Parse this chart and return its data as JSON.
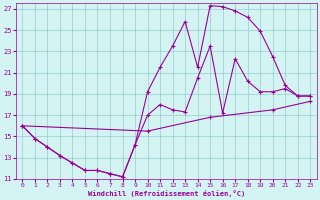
{
  "xlabel": "Windchill (Refroidissement éolien,°C)",
  "bg_color": "#d4f4f4",
  "grid_color": "#99cccc",
  "line_color": "#990099",
  "xlim": [
    -0.5,
    23.5
  ],
  "ylim": [
    11,
    27.5
  ],
  "yticks": [
    11,
    13,
    15,
    17,
    19,
    21,
    23,
    25,
    27
  ],
  "xticks": [
    0,
    1,
    2,
    3,
    4,
    5,
    6,
    7,
    8,
    9,
    10,
    11,
    12,
    13,
    14,
    15,
    16,
    17,
    18,
    19,
    20,
    21,
    22,
    23
  ],
  "series1": [
    [
      0,
      16.0
    ],
    [
      1,
      14.8
    ],
    [
      2,
      14.0
    ],
    [
      3,
      13.2
    ],
    [
      4,
      12.5
    ],
    [
      5,
      11.8
    ],
    [
      6,
      11.8
    ],
    [
      7,
      11.5
    ],
    [
      8,
      11.2
    ],
    [
      9,
      14.2
    ],
    [
      10,
      17.0
    ],
    [
      11,
      18.0
    ],
    [
      12,
      17.5
    ],
    [
      13,
      17.3
    ],
    [
      14,
      20.5
    ],
    [
      15,
      23.5
    ],
    [
      16,
      17.2
    ],
    [
      17,
      22.3
    ],
    [
      18,
      20.2
    ],
    [
      19,
      19.2
    ],
    [
      20,
      19.2
    ],
    [
      21,
      19.5
    ],
    [
      22,
      18.8
    ],
    [
      23,
      18.8
    ]
  ],
  "series2": [
    [
      0,
      16.0
    ],
    [
      1,
      14.8
    ],
    [
      2,
      14.0
    ],
    [
      3,
      13.2
    ],
    [
      4,
      12.5
    ],
    [
      5,
      11.8
    ],
    [
      6,
      11.8
    ],
    [
      7,
      11.5
    ],
    [
      8,
      11.2
    ],
    [
      9,
      14.2
    ],
    [
      10,
      19.2
    ],
    [
      11,
      21.5
    ],
    [
      12,
      23.5
    ],
    [
      13,
      25.8
    ],
    [
      14,
      21.5
    ],
    [
      15,
      27.3
    ],
    [
      16,
      27.2
    ],
    [
      17,
      26.8
    ],
    [
      18,
      26.2
    ],
    [
      19,
      24.9
    ],
    [
      20,
      22.5
    ],
    [
      21,
      19.8
    ],
    [
      22,
      18.8
    ],
    [
      23,
      18.8
    ]
  ],
  "series3": [
    [
      0,
      16.0
    ],
    [
      10,
      15.5
    ],
    [
      15,
      16.8
    ],
    [
      20,
      17.5
    ],
    [
      23,
      18.3
    ]
  ]
}
